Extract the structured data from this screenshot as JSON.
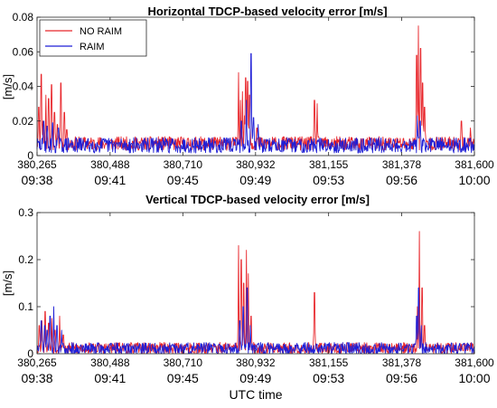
{
  "chart_data": [
    {
      "type": "line",
      "title": "Horizontal TDCP-based velocity error [m/s]",
      "ylabel": "[m/s]",
      "xlabel": "",
      "xlim": [
        380265,
        381600
      ],
      "ylim": [
        0,
        0.08
      ],
      "yticks": [
        "0",
        "0.02",
        "0.04",
        "0.06",
        "0.08"
      ],
      "xticks": [
        {
          "value": 380265,
          "label": "380,265",
          "time": "09:38"
        },
        {
          "value": 380488,
          "label": "380,488",
          "time": "09:41"
        },
        {
          "value": 380710,
          "label": "380,710",
          "time": "09:45"
        },
        {
          "value": 380932,
          "label": "380,932",
          "time": "09:49"
        },
        {
          "value": 381155,
          "label": "381,155",
          "time": "09:53"
        },
        {
          "value": 381378,
          "label": "381,378",
          "time": "09:56"
        },
        {
          "value": 381600,
          "label": "381,600",
          "time": "10:00"
        }
      ],
      "legend": {
        "placement": "top-left"
      },
      "series": [
        {
          "name": "NO RAIM",
          "color": "#e8262b",
          "baseline": 0.007,
          "noise": 0.004,
          "seed": 11,
          "peaks": [
            [
              380270,
              0.028
            ],
            [
              380278,
              0.047
            ],
            [
              380283,
              0.02
            ],
            [
              380292,
              0.035
            ],
            [
              380300,
              0.033
            ],
            [
              380309,
              0.041
            ],
            [
              380318,
              0.025
            ],
            [
              380327,
              0.018
            ],
            [
              380338,
              0.042
            ],
            [
              380348,
              0.025
            ],
            [
              380356,
              0.015
            ],
            [
              380880,
              0.048
            ],
            [
              380886,
              0.032
            ],
            [
              380892,
              0.037
            ],
            [
              380898,
              0.023
            ],
            [
              380902,
              0.045
            ],
            [
              380908,
              0.043
            ],
            [
              380914,
              0.035
            ],
            [
              380936,
              0.016
            ],
            [
              381112,
              0.032
            ],
            [
              381120,
              0.03
            ],
            [
              381424,
              0.058
            ],
            [
              381429,
              0.075
            ],
            [
              381436,
              0.062
            ],
            [
              381442,
              0.042
            ],
            [
              381448,
              0.028
            ],
            [
              381560,
              0.02
            ],
            [
              381588,
              0.016
            ]
          ]
        },
        {
          "name": "RAIM",
          "color": "#1f1fd6",
          "baseline": 0.006,
          "noise": 0.0045,
          "seed": 29,
          "peaks": [
            [
              380285,
              0.02
            ],
            [
              380296,
              0.017
            ],
            [
              380312,
              0.019
            ],
            [
              380330,
              0.016
            ],
            [
              380888,
              0.02
            ],
            [
              380904,
              0.032
            ],
            [
              380918,
              0.059
            ],
            [
              380926,
              0.022
            ],
            [
              380940,
              0.018
            ],
            [
              381426,
              0.023
            ],
            [
              381434,
              0.02
            ]
          ]
        }
      ]
    },
    {
      "type": "line",
      "title": "Vertical TDCP-based velocity error [m/s]",
      "ylabel": "[m/s]",
      "xlabel": "UTC time",
      "xlim": [
        380265,
        381600
      ],
      "ylim": [
        0,
        0.3
      ],
      "yticks": [
        "0",
        "0.1",
        "0.2",
        "0.3"
      ],
      "xticks": [
        {
          "value": 380265,
          "label": "380,265",
          "time": "09:38"
        },
        {
          "value": 380488,
          "label": "380,488",
          "time": "09:41"
        },
        {
          "value": 380710,
          "label": "380,710",
          "time": "09:45"
        },
        {
          "value": 380932,
          "label": "380,932",
          "time": "09:49"
        },
        {
          "value": 381155,
          "label": "381,155",
          "time": "09:53"
        },
        {
          "value": 381378,
          "label": "381,378",
          "time": "09:56"
        },
        {
          "value": 381600,
          "label": "381,600",
          "time": "10:00"
        }
      ],
      "series": [
        {
          "name": "NO RAIM",
          "color": "#e8262b",
          "baseline": 0.012,
          "noise": 0.012,
          "seed": 53,
          "peaks": [
            [
              380272,
              0.06
            ],
            [
              380280,
              0.07
            ],
            [
              380290,
              0.09
            ],
            [
              380300,
              0.065
            ],
            [
              380310,
              0.075
            ],
            [
              380320,
              0.05
            ],
            [
              380334,
              0.08
            ],
            [
              380345,
              0.04
            ],
            [
              380880,
              0.23
            ],
            [
              380888,
              0.2
            ],
            [
              380896,
              0.15
            ],
            [
              380904,
              0.22
            ],
            [
              380910,
              0.17
            ],
            [
              380918,
              0.08
            ],
            [
              381112,
              0.13
            ],
            [
              381426,
              0.1
            ],
            [
              381432,
              0.26
            ],
            [
              381440,
              0.14
            ],
            [
              381448,
              0.06
            ]
          ]
        },
        {
          "name": "RAIM",
          "color": "#1f1fd6",
          "baseline": 0.011,
          "noise": 0.013,
          "seed": 71,
          "peaks": [
            [
              380278,
              0.07
            ],
            [
              380288,
              0.06
            ],
            [
              380296,
              0.05
            ],
            [
              380305,
              0.08
            ],
            [
              380316,
              0.1
            ],
            [
              380326,
              0.06
            ],
            [
              380340,
              0.05
            ],
            [
              380884,
              0.07
            ],
            [
              380894,
              0.1
            ],
            [
              380906,
              0.14
            ],
            [
              380916,
              0.06
            ],
            [
              381424,
              0.08
            ],
            [
              381430,
              0.14
            ],
            [
              381438,
              0.06
            ]
          ]
        }
      ]
    }
  ]
}
